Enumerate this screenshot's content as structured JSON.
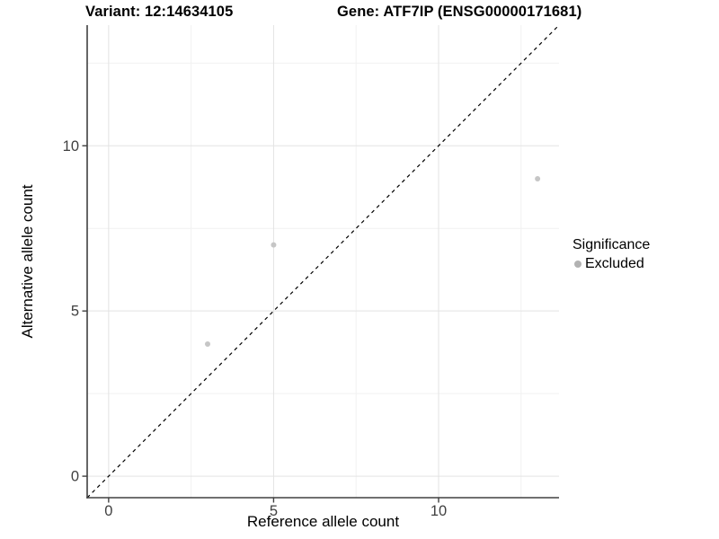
{
  "header": {
    "variant_title": "Variant: 12:14634105",
    "gene_title": "Gene: ATF7IP (ENSG00000171681)"
  },
  "axes": {
    "x_label": "Reference allele count",
    "y_label": "Alternative allele count"
  },
  "legend": {
    "title": "Significance",
    "items": [
      {
        "label": "Excluded",
        "color": "#b2b2b2"
      }
    ]
  },
  "colors": {
    "background": "#ffffff",
    "title": "#000000",
    "grid_major": "#e3e3e3",
    "grid_minor": "#f1f1f1",
    "axis_line": "#404040",
    "tick_label": "#404040",
    "reference_line": "#000000",
    "point": "#c6c6c6"
  },
  "chart_data": {
    "type": "scatter",
    "title": "Variant: 12:14634105 | Gene: ATF7IP (ENSG00000171681)",
    "xlabel": "Reference allele count",
    "ylabel": "Alternative allele count",
    "xlim": [
      -0.65,
      13.65
    ],
    "ylim": [
      -0.65,
      13.65
    ],
    "x_ticks": [
      0,
      5,
      10
    ],
    "y_ticks": [
      0,
      5,
      10
    ],
    "x_minor_ticks": [
      2.5,
      7.5,
      12.5
    ],
    "y_minor_ticks": [
      2.5,
      7.5,
      12.5
    ],
    "grid": true,
    "legend_position": "right",
    "series": [
      {
        "name": "Excluded",
        "points": [
          [
            3,
            4
          ],
          [
            5,
            7
          ],
          [
            13,
            9
          ]
        ]
      }
    ],
    "reference_line": {
      "kind": "identity",
      "style": "dashed"
    }
  }
}
